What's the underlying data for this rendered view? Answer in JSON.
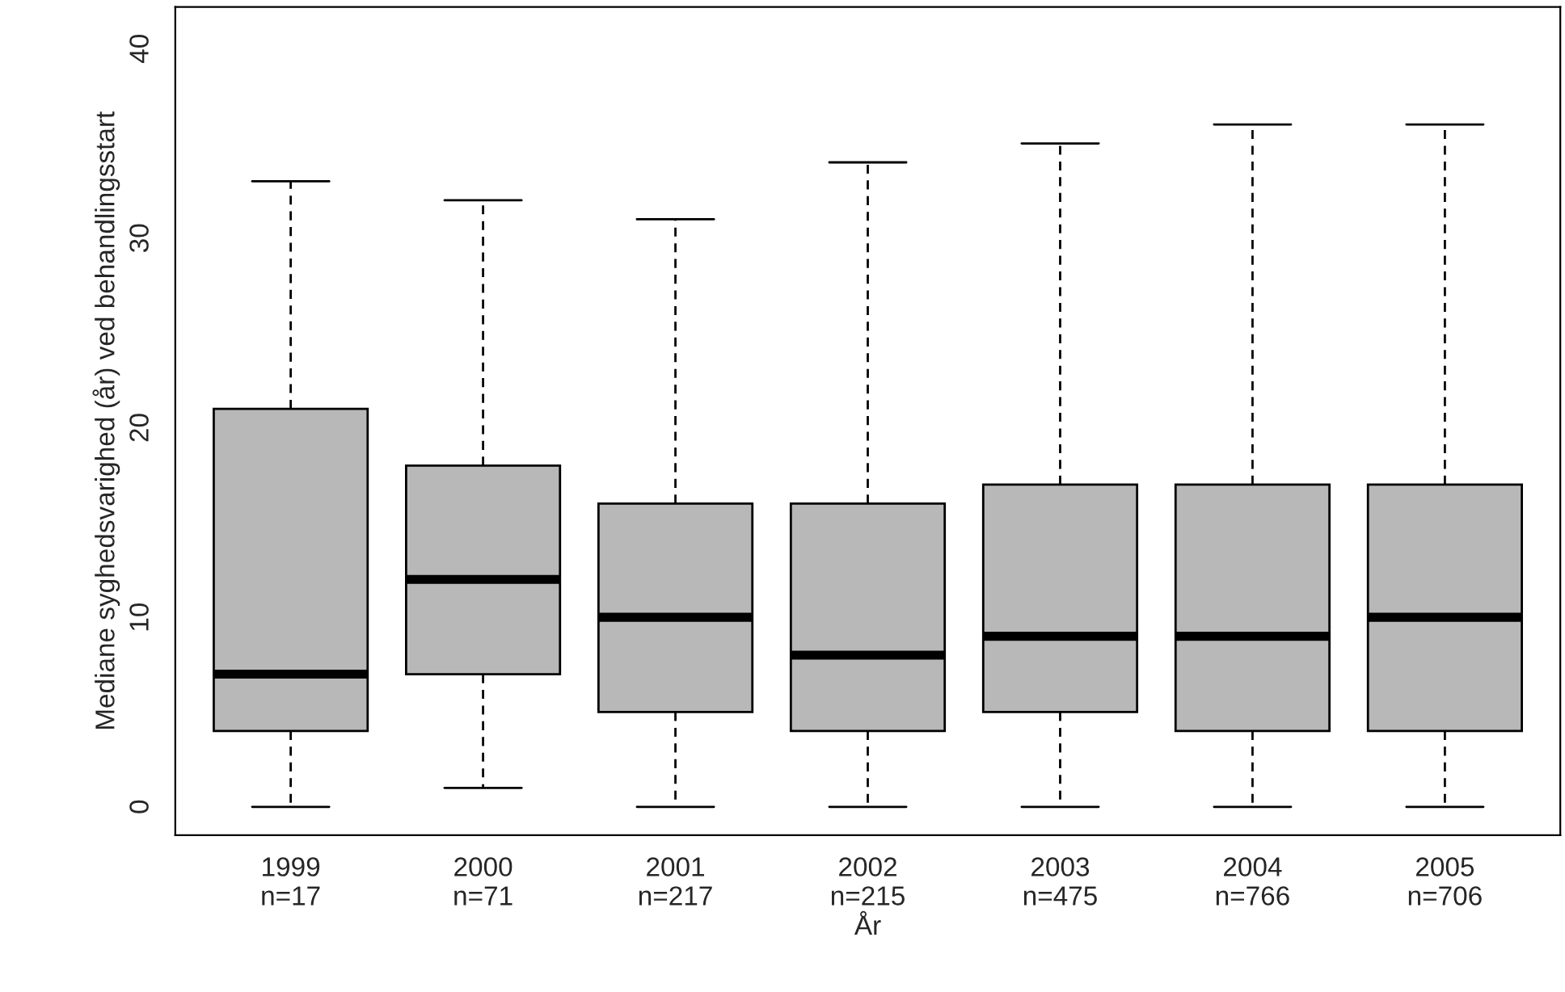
{
  "chart_data": {
    "type": "box",
    "xlabel": "År",
    "ylabel": "Mediane syghedsvarighed (år) ved behandlingsstart",
    "categories": [
      "1999\nn=17",
      "2000\nn=71",
      "2001\nn=217",
      "2002\nn=215",
      "2003\nn=475",
      "2004\nn=766",
      "2005\nn=706"
    ],
    "boxes": [
      {
        "low": 0,
        "q1": 4,
        "median": 7,
        "q3": 21,
        "high": 33
      },
      {
        "low": 1,
        "q1": 7,
        "median": 12,
        "q3": 18,
        "high": 32
      },
      {
        "low": 0,
        "q1": 5,
        "median": 10,
        "q3": 16,
        "high": 31
      },
      {
        "low": 0,
        "q1": 4,
        "median": 8,
        "q3": 16,
        "high": 34
      },
      {
        "low": 0,
        "q1": 5,
        "median": 9,
        "q3": 17,
        "high": 35
      },
      {
        "low": 0,
        "q1": 4,
        "median": 9,
        "q3": 17,
        "high": 36
      },
      {
        "low": 0,
        "q1": 4,
        "median": 10,
        "q3": 17,
        "high": 36
      }
    ],
    "color": "#b8b8b8",
    "ylim": [
      -1.5,
      42.2
    ],
    "yticks": [
      0,
      10,
      20,
      30,
      40
    ],
    "grid": false
  }
}
